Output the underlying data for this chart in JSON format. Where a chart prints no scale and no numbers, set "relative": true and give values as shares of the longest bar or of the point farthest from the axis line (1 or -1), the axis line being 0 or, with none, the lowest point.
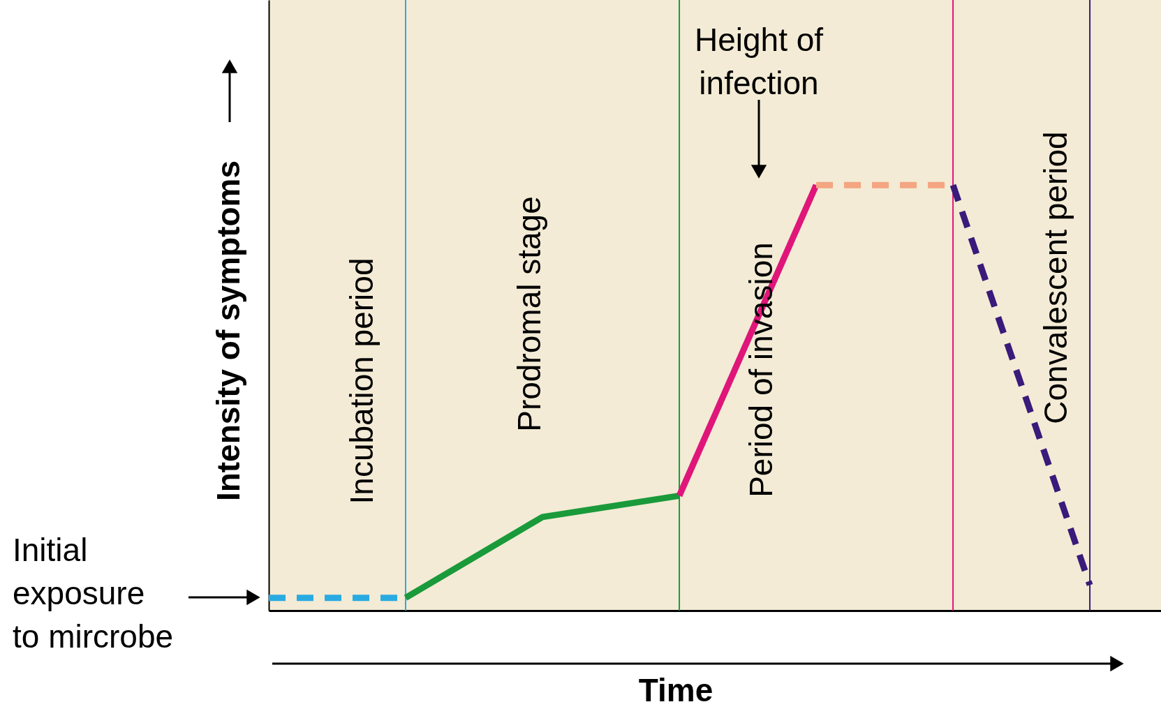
{
  "chart_data": {
    "type": "line",
    "relative": true,
    "xlabel": "Time",
    "ylabel": "Intensity of symptoms",
    "tick_labels": false,
    "grid": false,
    "categories": [
      null,
      null,
      null,
      null,
      null,
      null,
      null
    ],
    "series": [
      {
        "color": "#29abe2",
        "line_style": "dashed",
        "values": [
          0.03,
          0.03,
          null,
          null,
          null,
          null,
          null
        ]
      },
      {
        "color": "#1a9a3a",
        "line_style": "solid",
        "values": [
          null,
          0.03,
          0.22,
          0.27,
          null,
          null,
          null
        ]
      },
      {
        "color": "#e0157a",
        "line_style": "solid",
        "values": [
          null,
          null,
          null,
          0.27,
          1.0,
          null,
          null
        ]
      },
      {
        "color": "#f4a582",
        "line_style": "dashed",
        "values": [
          null,
          null,
          null,
          null,
          1.0,
          1.0,
          null
        ]
      },
      {
        "color": "#3a1a7a",
        "line_style": "dashed",
        "values": [
          null,
          null,
          null,
          null,
          null,
          1.0,
          0.06
        ]
      }
    ],
    "annotations": [
      "Incubation period",
      "Prodromal stage",
      "Period of invasion",
      "Convalescent period",
      "Height of\ninfection",
      "Initial\nexposure\nto mircrobe"
    ]
  }
}
